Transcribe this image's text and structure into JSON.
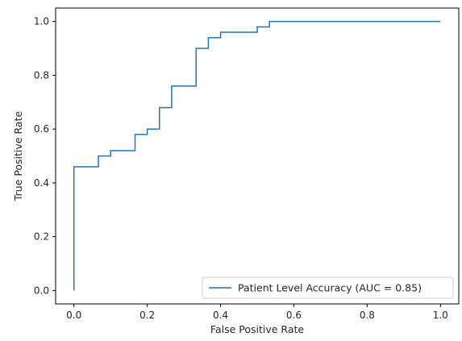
{
  "chart_data": {
    "type": "line",
    "title": "",
    "xlabel": "False Positive Rate",
    "ylabel": "True Positive Rate",
    "xlim": [
      -0.05,
      1.05
    ],
    "ylim": [
      -0.05,
      1.05
    ],
    "grid": false,
    "legend_position": "bottom-right",
    "x_ticks": [
      {
        "value": 0.0,
        "label": "0.0"
      },
      {
        "value": 0.2,
        "label": "0.2"
      },
      {
        "value": 0.4,
        "label": "0.4"
      },
      {
        "value": 0.6,
        "label": "0.6"
      },
      {
        "value": 0.8,
        "label": "0.8"
      },
      {
        "value": 1.0,
        "label": "1.0"
      }
    ],
    "y_ticks": [
      {
        "value": 0.0,
        "label": "0.0"
      },
      {
        "value": 0.2,
        "label": "0.2"
      },
      {
        "value": 0.4,
        "label": "0.4"
      },
      {
        "value": 0.6,
        "label": "0.6"
      },
      {
        "value": 0.8,
        "label": "0.8"
      },
      {
        "value": 1.0,
        "label": "1.0"
      }
    ],
    "series": [
      {
        "name": "Patient Level Accuracy (AUC = 0.85)",
        "color": "#1f77b4",
        "step": true,
        "fpr": [
          0.0,
          0.0,
          0.0667,
          0.0667,
          0.1,
          0.1,
          0.1667,
          0.1667,
          0.2,
          0.2,
          0.2333,
          0.2333,
          0.2667,
          0.2667,
          0.3333,
          0.3333,
          0.3667,
          0.3667,
          0.4,
          0.4,
          0.5,
          0.5,
          0.5333,
          0.5333,
          1.0
        ],
        "tpr": [
          0.0,
          0.46,
          0.46,
          0.5,
          0.5,
          0.52,
          0.52,
          0.58,
          0.58,
          0.6,
          0.6,
          0.68,
          0.68,
          0.76,
          0.76,
          0.9,
          0.9,
          0.94,
          0.94,
          0.96,
          0.96,
          0.98,
          0.98,
          1.0,
          1.0
        ]
      }
    ]
  }
}
